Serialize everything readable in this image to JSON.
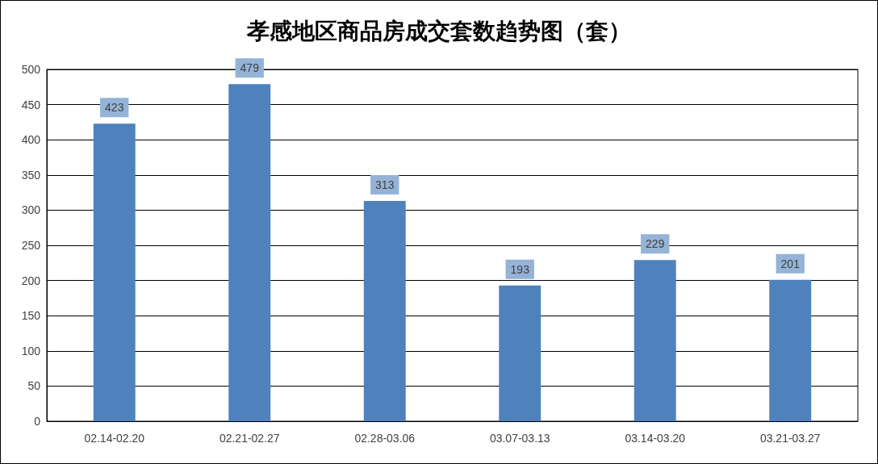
{
  "chart_data": {
    "type": "bar",
    "title": "孝感地区商品房成交套数趋势图（套）",
    "categories": [
      "02.14-02.20",
      "02.21-02.27",
      "02.28-03.06",
      "03.07-03.13",
      "03.14-03.20",
      "03.21-03.27"
    ],
    "values": [
      423,
      479,
      313,
      193,
      229,
      201
    ],
    "color": "#4f81bd",
    "ylim": [
      0,
      500
    ],
    "yticks": [
      0,
      50,
      100,
      150,
      200,
      250,
      300,
      350,
      400,
      450,
      500
    ],
    "grid": "y",
    "data_labels": true
  }
}
